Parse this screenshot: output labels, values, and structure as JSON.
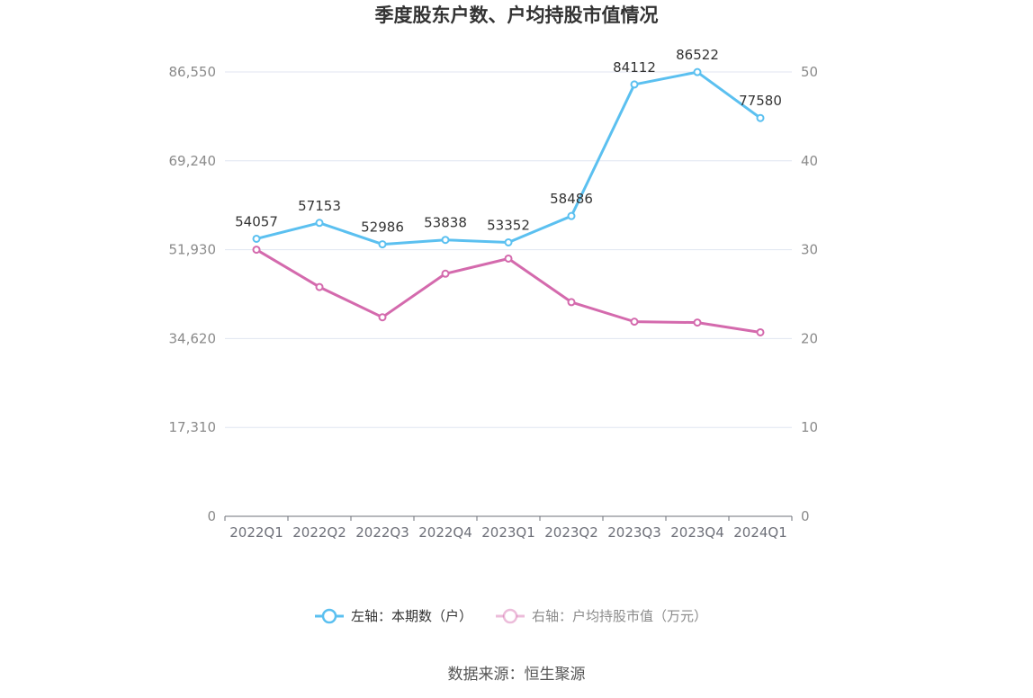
{
  "chart_data": {
    "type": "line",
    "title": "季度股东户数、户均持股市值情况",
    "categories": [
      "2022Q1",
      "2022Q2",
      "2022Q3",
      "2022Q4",
      "2023Q1",
      "2023Q2",
      "2023Q3",
      "2023Q4",
      "2024Q1"
    ],
    "y_left": {
      "ticks": [
        "0",
        "17,310",
        "34,620",
        "51,930",
        "69,240",
        "86,550"
      ],
      "range": [
        0,
        86550
      ]
    },
    "y_right": {
      "ticks": [
        "0",
        "10",
        "20",
        "30",
        "40",
        "50"
      ],
      "range": [
        0,
        50
      ]
    },
    "series": [
      {
        "name": "左轴：本期数（户）",
        "axis": "left",
        "color": "#5bc0f0",
        "values": [
          54057,
          57153,
          52986,
          53838,
          53352,
          58486,
          84112,
          86522,
          77580
        ],
        "labels": [
          "54057",
          "57153",
          "52986",
          "53838",
          "53352",
          "58486",
          "84112",
          "86522",
          "77580"
        ]
      },
      {
        "name": "右轴：户均持股市值（万元）",
        "axis": "right",
        "color": "#d46aad",
        "values": [
          30.0,
          25.8,
          22.4,
          27.3,
          29.0,
          24.1,
          21.9,
          21.8,
          20.7
        ]
      }
    ],
    "grid": true,
    "legend": "bottom-center"
  },
  "source_text": "数据来源：恒生聚源"
}
